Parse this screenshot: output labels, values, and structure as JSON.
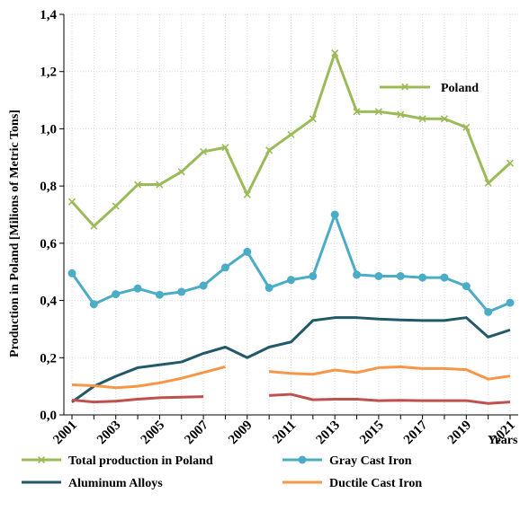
{
  "chart_data": {
    "type": "line",
    "title": "",
    "xlabel": "Years",
    "ylabel": "Production in Poland [Milions of Metric Tons]",
    "x": [
      2001,
      2002,
      2003,
      2004,
      2005,
      2006,
      2007,
      2008,
      2009,
      2010,
      2011,
      2012,
      2013,
      2014,
      2015,
      2016,
      2017,
      2018,
      2019,
      2020,
      2021
    ],
    "x_tick_labels": [
      "2001",
      "2003",
      "2005",
      "2007",
      "2009",
      "2011",
      "2013",
      "2015",
      "2017",
      "2019",
      "2021"
    ],
    "ylim": [
      0,
      1.4
    ],
    "y_tick_labels": [
      "0,0",
      "0,2",
      "0,4",
      "0,6",
      "0,8",
      "1,0",
      "1,2",
      "1,4"
    ],
    "grid": true,
    "annotations": [
      "Poland"
    ],
    "series": [
      {
        "name": "Total production in Poland",
        "color": "#9bbb59",
        "marker": "x",
        "values": [
          0.745,
          0.66,
          0.73,
          0.805,
          0.805,
          0.85,
          0.92,
          0.935,
          0.77,
          0.925,
          0.98,
          1.035,
          1.265,
          1.06,
          1.06,
          1.05,
          1.035,
          1.035,
          1.005,
          0.81,
          0.88
        ]
      },
      {
        "name": "Gray Cast Iron",
        "color": "#4bacc6",
        "marker": "circle",
        "values": [
          0.495,
          0.387,
          0.422,
          0.442,
          0.42,
          0.43,
          0.452,
          0.515,
          0.57,
          0.444,
          0.472,
          0.485,
          0.7,
          0.49,
          0.485,
          0.485,
          0.48,
          0.48,
          0.45,
          0.36,
          0.392
        ]
      },
      {
        "name": "Aluminum Alloys",
        "color": "#215968",
        "marker": "none",
        "values": [
          0.045,
          0.1,
          0.135,
          0.165,
          0.175,
          0.185,
          0.215,
          0.237,
          0.2,
          0.237,
          0.255,
          0.33,
          0.34,
          0.34,
          0.335,
          0.332,
          0.33,
          0.33,
          0.34,
          0.272,
          0.297
        ]
      },
      {
        "name": "Ductile Cast Iron",
        "color": "#f79646",
        "marker": "none",
        "values": [
          0.105,
          0.102,
          0.095,
          0.1,
          0.112,
          0.128,
          0.148,
          0.168,
          null,
          0.152,
          0.145,
          0.142,
          0.157,
          0.148,
          0.165,
          0.168,
          0.162,
          0.162,
          0.158,
          0.125,
          0.136
        ]
      },
      {
        "name": "",
        "color": "#c0504d",
        "marker": "none",
        "values": [
          0.052,
          0.045,
          0.048,
          0.055,
          0.06,
          0.062,
          0.064,
          null,
          null,
          0.068,
          0.072,
          0.053,
          0.055,
          0.055,
          0.05,
          0.051,
          0.05,
          0.05,
          0.05,
          0.04,
          0.045
        ]
      }
    ],
    "legend": [
      "Total production in Poland",
      "Gray Cast Iron",
      "Aluminum Alloys",
      "Ductile Cast Iron"
    ]
  }
}
